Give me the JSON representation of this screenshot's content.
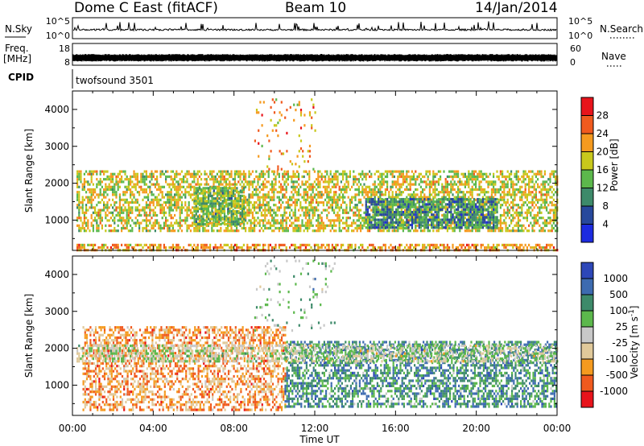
{
  "header": {
    "radar": "Dome C East (fitACF)",
    "beam": "Beam 10",
    "date": "14/Jan/2014"
  },
  "nsky_panel": {
    "left_label": "N.Sky",
    "right_label": "N.Search",
    "left_ticks": [
      "10^5",
      "10^0"
    ],
    "right_ticks": [
      "10^5",
      "10^0"
    ]
  },
  "freq_panel": {
    "left_label_1": "Freq.",
    "left_label_2": "[MHz]",
    "right_label": "Nave",
    "left_ticks": [
      18,
      8
    ],
    "right_ticks": [
      60,
      0
    ]
  },
  "cpid_panel": {
    "label": "CPID",
    "mode": "twofsound 3501"
  },
  "x_axis": {
    "label": "Time UT",
    "ticks": [
      "00:00",
      "04:00",
      "08:00",
      "12:00",
      "16:00",
      "20:00",
      "00:00"
    ]
  },
  "chart_data": [
    {
      "type": "heatmap",
      "title": "",
      "quantity": "power",
      "xlabel": "Time UT",
      "ylabel": "Slant Range [km]",
      "xlim": [
        0,
        24
      ],
      "ylim": [
        180,
        4500
      ],
      "y_ticks": [
        1000,
        2000,
        3000,
        4000
      ],
      "colorbar": {
        "label": "Power [dB]",
        "ticks": [
          28,
          24,
          20,
          16,
          12,
          8,
          4
        ],
        "colors": [
          "#e8141b",
          "#f05a1e",
          "#f59a1f",
          "#c8c81c",
          "#5cb84c",
          "#3d8a6a",
          "#27489c",
          "#1c2be0"
        ]
      },
      "bands": [
        {
          "t0": 0.2,
          "t1": 24,
          "r0": 180,
          "r1": 360,
          "density": 0.55,
          "mean_level": 2
        },
        {
          "t0": 0.2,
          "t1": 24,
          "r0": 700,
          "r1": 2350,
          "density": 0.55,
          "mean_level": 3
        },
        {
          "t0": 9,
          "t1": 12,
          "r0": 2300,
          "r1": 4300,
          "density": 0.08,
          "mean_level": 2
        },
        {
          "t0": 14.5,
          "t1": 21,
          "r0": 800,
          "r1": 1600,
          "density": 0.8,
          "mean_level": 5
        },
        {
          "t0": 6,
          "t1": 8.5,
          "r0": 900,
          "r1": 1900,
          "density": 0.7,
          "mean_level": 4
        }
      ]
    },
    {
      "type": "heatmap",
      "title": "",
      "quantity": "velocity",
      "xlabel": "Time UT",
      "ylabel": "Slant Range [km]",
      "xlim": [
        0,
        24
      ],
      "ylim": [
        180,
        4500
      ],
      "y_ticks": [
        1000,
        2000,
        3000,
        4000
      ],
      "colorbar": {
        "label": "Velocity [m s^-1]",
        "ticks": [
          1000,
          500,
          100,
          25,
          -25,
          -100,
          -500,
          -1000
        ],
        "colors": [
          "#2d47b8",
          "#3d6bb0",
          "#3d8a6a",
          "#5cb84c",
          "#c8c8c8",
          "#e0c99a",
          "#f59a1f",
          "#f05a1e",
          "#e8141b"
        ]
      },
      "bands": [
        {
          "t0": 0.5,
          "t1": 10.5,
          "r0": 300,
          "r1": 2600,
          "density": 0.5,
          "mean_level": 6
        },
        {
          "t0": 10.5,
          "t1": 24,
          "r0": 400,
          "r1": 2200,
          "density": 0.55,
          "mean_level": 2
        },
        {
          "t0": 0.2,
          "t1": 24,
          "r0": 1650,
          "r1": 2100,
          "density": 0.5,
          "mean_level": 4
        },
        {
          "t0": 9,
          "t1": 13,
          "r0": 2500,
          "r1": 4400,
          "density": 0.08,
          "mean_level": 3
        }
      ]
    }
  ]
}
